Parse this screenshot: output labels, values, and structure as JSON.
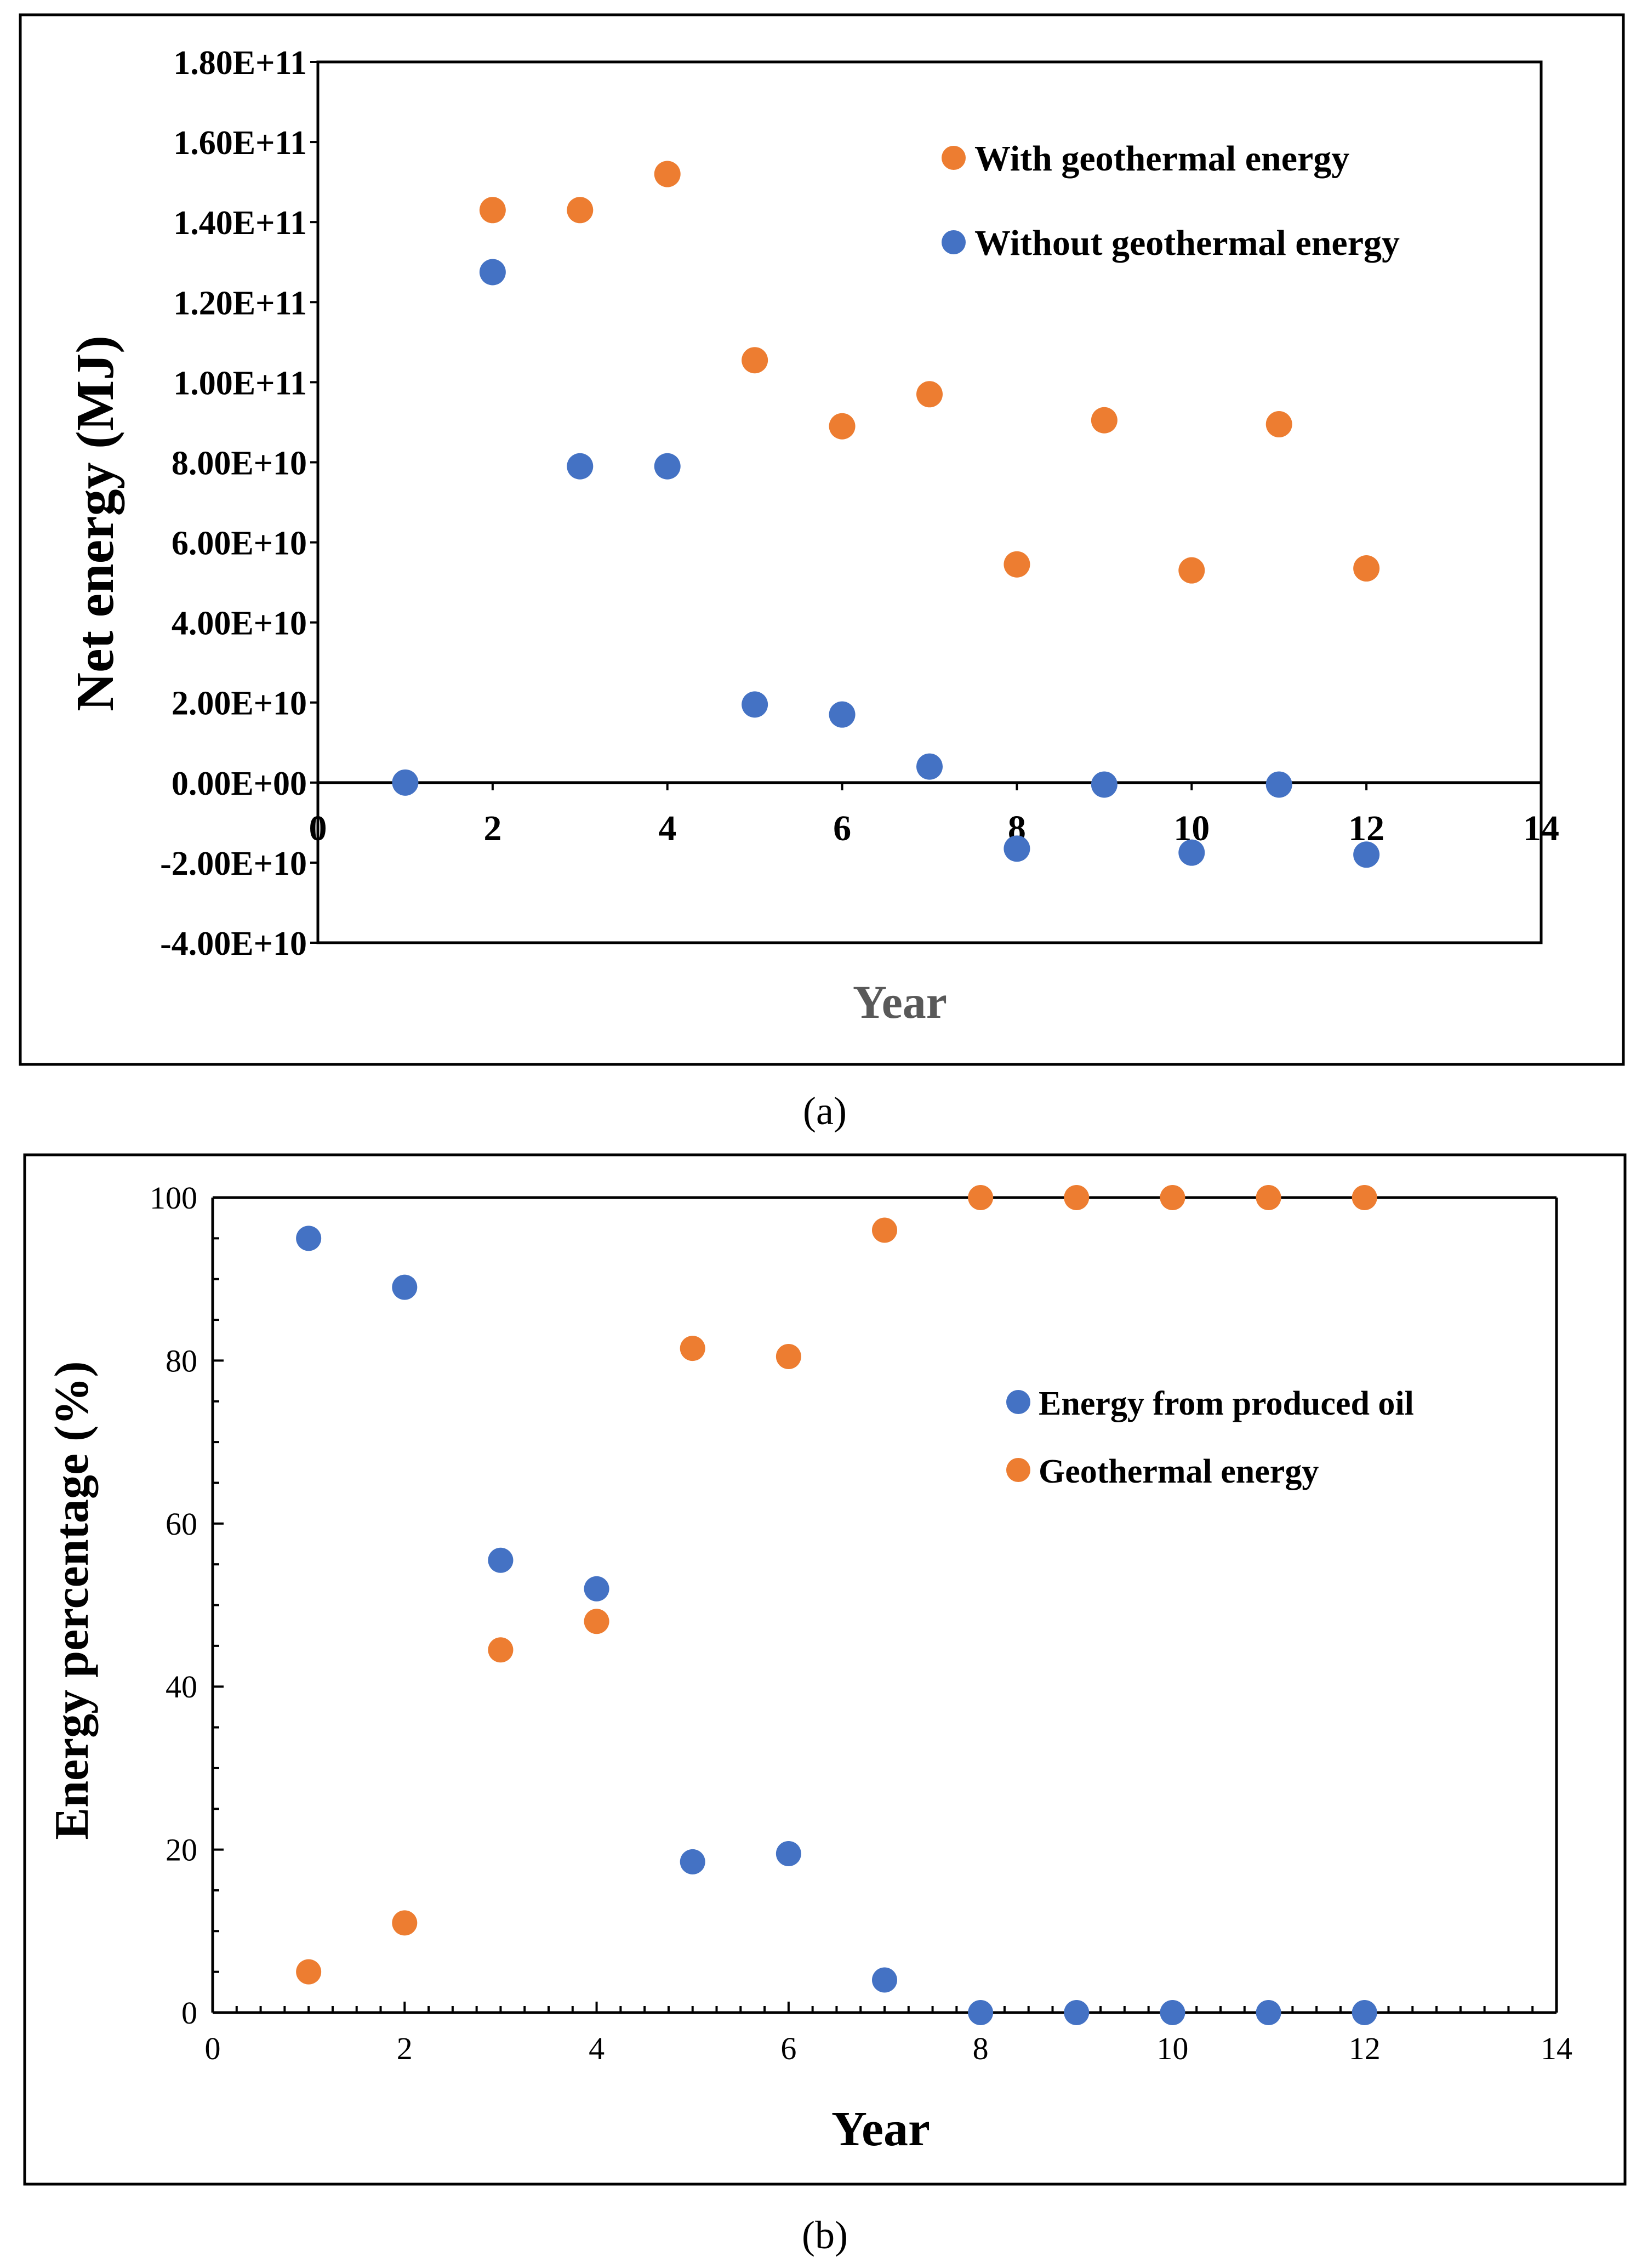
{
  "colors": {
    "orange": "#ED7D31",
    "blue": "#4472C4",
    "axis_title_a": "#595959",
    "black": "#000000"
  },
  "chart_data": [
    {
      "type": "scatter",
      "caption": "(a)",
      "ylabel": "Net energy (MJ)",
      "xlabel": "Year",
      "xlim": [
        0,
        14
      ],
      "ylim": [
        -40000000000,
        180000000000
      ],
      "x_ticks": [
        "0",
        "2",
        "4",
        "6",
        "8",
        "10",
        "12",
        "14"
      ],
      "y_ticks": [
        "-4.00E+10",
        "-2.00E+10",
        "0.00E+00",
        "2.00E+10",
        "4.00E+10",
        "6.00E+10",
        "8.00E+10",
        "1.00E+11",
        "1.20E+11",
        "1.40E+11",
        "1.60E+11",
        "1.80E+11"
      ],
      "legend": "top-right",
      "series": [
        {
          "name": "With geothermal energy",
          "color": "orange",
          "x": [
            2,
            3,
            4,
            5,
            6,
            7,
            8,
            9,
            10,
            11,
            12
          ],
          "y": [
            143000000000,
            143000000000,
            152000000000,
            105500000000,
            89000000000,
            97000000000,
            54500000000,
            90500000000,
            53000000000,
            89500000000,
            53500000000
          ]
        },
        {
          "name": "Without geothermal energy",
          "color": "blue",
          "x": [
            1,
            2,
            3,
            4,
            5,
            6,
            7,
            8,
            9,
            10,
            11,
            12
          ],
          "y": [
            0,
            127500000000,
            79000000000,
            79000000000,
            19500000000,
            17000000000,
            4000000000,
            -16500000000,
            -500000000,
            -17500000000,
            -500000000,
            -18000000000
          ]
        }
      ]
    },
    {
      "type": "scatter",
      "caption": "(b)",
      "ylabel": "Energy percentage (%)",
      "xlabel": "Year",
      "xlim": [
        0,
        14
      ],
      "ylim": [
        0,
        100
      ],
      "x_ticks": [
        "0",
        "2",
        "4",
        "6",
        "8",
        "10",
        "12",
        "14"
      ],
      "y_ticks": [
        "0",
        "20",
        "40",
        "60",
        "80",
        "100"
      ],
      "legend": "right",
      "series": [
        {
          "name": "Energy from produced oil",
          "color": "blue",
          "x": [
            1,
            2,
            3,
            4,
            5,
            6,
            7,
            8,
            9,
            10,
            11,
            12
          ],
          "y": [
            95,
            89,
            55.5,
            52,
            18.5,
            19.5,
            4,
            0,
            0,
            0,
            0,
            0
          ]
        },
        {
          "name": "Geothermal energy",
          "color": "orange",
          "x": [
            1,
            2,
            3,
            4,
            5,
            6,
            7,
            8,
            9,
            10,
            11,
            12
          ],
          "y": [
            5,
            11,
            44.5,
            48,
            81.5,
            80.5,
            96,
            100,
            100,
            100,
            100,
            100
          ]
        }
      ]
    }
  ]
}
